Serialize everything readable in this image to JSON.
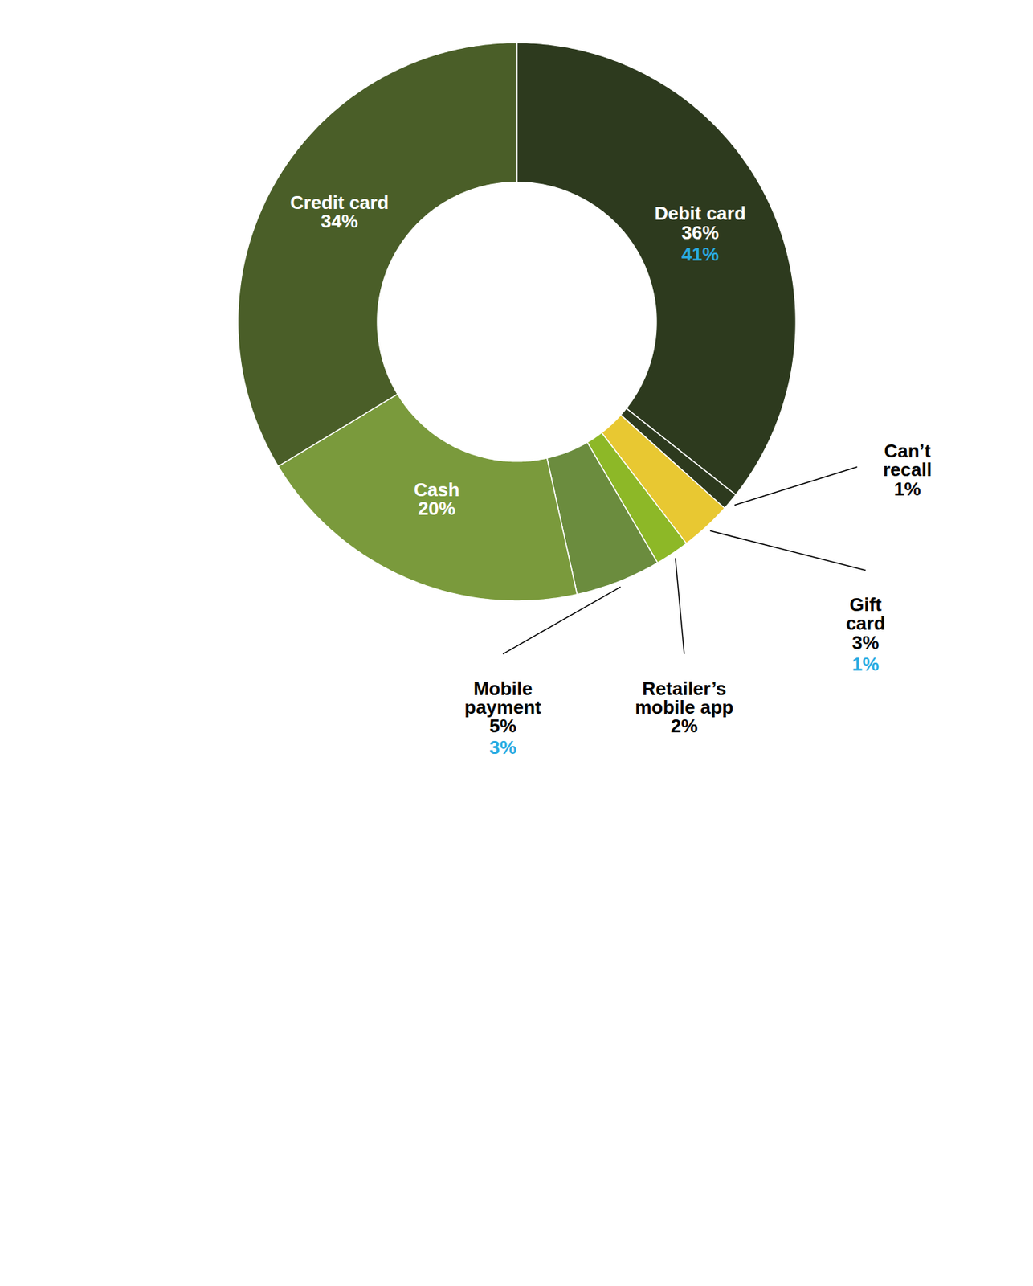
{
  "chart_data": {
    "type": "donut",
    "categories": [
      "Debit card",
      "Can’t\nrecall",
      "Gift\ncard",
      "Retailer’s\nmobile app",
      "Mobile\npayment",
      "Cash",
      "Credit card"
    ],
    "values": [
      36,
      1,
      3,
      2,
      5,
      20,
      34
    ],
    "value_labels": [
      "36%",
      "1%",
      "3%",
      "2%",
      "5%",
      "20%",
      "34%"
    ],
    "data_labels": true,
    "colors": [
      "#2d3a1e",
      "#2d3a1e",
      "#e8c832",
      "#8db827",
      "#6b8c3e",
      "#7a9a3c",
      "#4a5e28"
    ],
    "text_colors": [
      "white",
      "black",
      "black",
      "black",
      "black",
      "white",
      "white"
    ],
    "secondary_values": [
      41,
      null,
      1,
      null,
      3,
      null,
      null
    ],
    "secondary_value_labels": [
      "41%",
      null,
      "1%",
      null,
      "3%",
      null,
      null
    ],
    "secondary_color": "#29abe2"
  }
}
